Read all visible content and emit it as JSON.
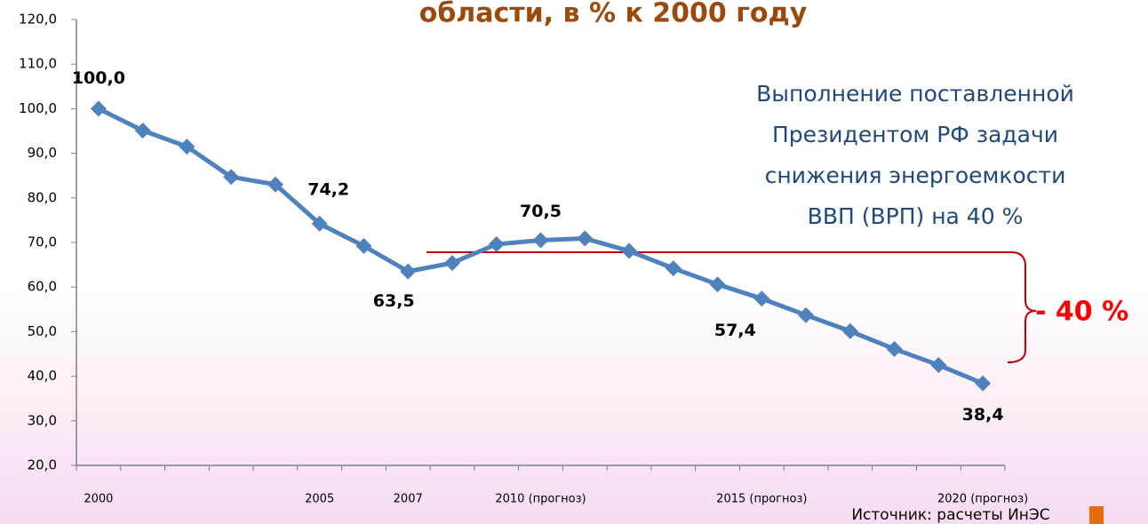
{
  "chart_data": {
    "type": "line",
    "title": "области, в % к 2000 году",
    "annotation": [
      "Выполнение поставленной",
      "Президентом РФ задачи",
      "снижения энергоемкости",
      "ВВП (ВРП) на 40 %"
    ],
    "reduction_label": "- 40 %",
    "source": "Источник: расчеты ИнЭС",
    "categories": [
      "2000",
      null,
      null,
      null,
      null,
      "2005",
      null,
      "2007",
      null,
      null,
      "2010 (прогноз)",
      null,
      null,
      null,
      null,
      "2015 (прогноз)",
      null,
      null,
      null,
      null,
      "2020 (прогноз)"
    ],
    "series": [
      {
        "name": null,
        "color": "#4f81bd",
        "values": [
          100,
          95.1,
          91.5,
          84.7,
          83,
          74.2,
          69.2,
          63.5,
          65.4,
          69.6,
          70.5,
          70.9,
          68.1,
          64.2,
          60.6,
          57.4,
          53.7,
          50.1,
          46.1,
          42.5,
          38.4
        ],
        "value_labels": [
          "100,0",
          null,
          null,
          null,
          null,
          "74,2",
          null,
          "63,5",
          null,
          null,
          "70,5",
          null,
          null,
          null,
          null,
          "57,4",
          null,
          null,
          null,
          null,
          "38,4"
        ]
      }
    ],
    "ylim": [
      20,
      120
    ],
    "yticks": [
      {
        "value": 20,
        "label": "20,0"
      },
      {
        "value": 30,
        "label": "30,0"
      },
      {
        "value": 40,
        "label": "40,0"
      },
      {
        "value": 50,
        "label": "50,0"
      },
      {
        "value": 60,
        "label": "60,0"
      },
      {
        "value": 70,
        "label": "70,0"
      },
      {
        "value": 80,
        "label": "80,0"
      },
      {
        "value": 90,
        "label": "90,0"
      },
      {
        "value": 100,
        "label": "100,0"
      },
      {
        "value": 110,
        "label": "110,0"
      },
      {
        "value": 120,
        "label": "120,0"
      }
    ],
    "grid": false
  }
}
